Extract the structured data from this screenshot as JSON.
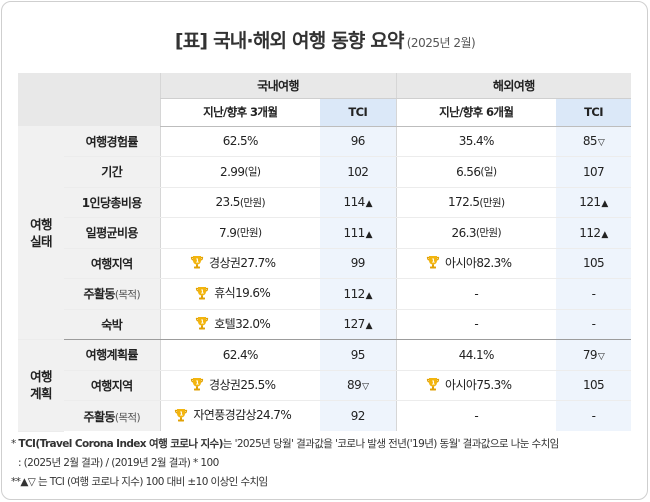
{
  "title": "[표] 국내·해외 여행 동향 요약",
  "subtitle": "(2025년 2월)",
  "header": {
    "domestic": "국내여행",
    "overseas": "해외여행",
    "period": "지난/향후 3개월",
    "period_overseas": "지난/향후 6개월",
    "tci": "TCI"
  },
  "categories": {
    "actual": [
      "여행",
      "실태"
    ],
    "plan": [
      "여행",
      "계획"
    ]
  },
  "rows": {
    "r0": {
      "label": "여행경험률",
      "label_sub": "",
      "d_val": "62.5%",
      "d_unit": "",
      "d_trophy": false,
      "d_tci": "96",
      "d_arrow": "",
      "o_val": "35.4%",
      "o_unit": "",
      "o_trophy": false,
      "o_tci": "85",
      "o_arrow": "▽"
    },
    "r1": {
      "label": "기간",
      "label_sub": "",
      "d_val": "2.99",
      "d_unit": "(일)",
      "d_trophy": false,
      "d_tci": "102",
      "d_arrow": "",
      "o_val": "6.56",
      "o_unit": "(일)",
      "o_trophy": false,
      "o_tci": "107",
      "o_arrow": ""
    },
    "r2": {
      "label": "1인당총비용",
      "label_sub": "",
      "d_val": "23.5",
      "d_unit": "(만원)",
      "d_trophy": false,
      "d_tci": "114",
      "d_arrow": "▲",
      "o_val": "172.5",
      "o_unit": "(만원)",
      "o_trophy": false,
      "o_tci": "121",
      "o_arrow": "▲"
    },
    "r3": {
      "label": "일평균비용",
      "label_sub": "",
      "d_val": "7.9",
      "d_unit": "(만원)",
      "d_trophy": false,
      "d_tci": "111",
      "d_arrow": "▲",
      "o_val": "26.3",
      "o_unit": "(만원)",
      "o_trophy": false,
      "o_tci": "112",
      "o_arrow": "▲"
    },
    "r4": {
      "label": "여행지역",
      "label_sub": "",
      "d_val": "경상권27.7%",
      "d_unit": "",
      "d_trophy": true,
      "d_tci": "99",
      "d_arrow": "",
      "o_val": "아시아82.3%",
      "o_unit": "",
      "o_trophy": true,
      "o_tci": "105",
      "o_arrow": ""
    },
    "r5": {
      "label": "주활동",
      "label_sub": "(목적)",
      "d_val": "휴식19.6%",
      "d_unit": "",
      "d_trophy": true,
      "d_tci": "112",
      "d_arrow": "▲",
      "o_val": "-",
      "o_unit": "",
      "o_trophy": false,
      "o_tci": "-",
      "o_arrow": ""
    },
    "r6": {
      "label": "숙박",
      "label_sub": "",
      "d_val": "호텔32.0%",
      "d_unit": "",
      "d_trophy": true,
      "d_tci": "127",
      "d_arrow": "▲",
      "o_val": "-",
      "o_unit": "",
      "o_trophy": false,
      "o_tci": "-",
      "o_arrow": ""
    },
    "r7": {
      "label": "여행계획률",
      "label_sub": "",
      "d_val": "62.4%",
      "d_unit": "",
      "d_trophy": false,
      "d_tci": "95",
      "d_arrow": "",
      "o_val": "44.1%",
      "o_unit": "",
      "o_trophy": false,
      "o_tci": "79",
      "o_arrow": "▽"
    },
    "r8": {
      "label": "여행지역",
      "label_sub": "",
      "d_val": "경상권25.5%",
      "d_unit": "",
      "d_trophy": true,
      "d_tci": "89",
      "d_arrow": "▽",
      "o_val": "아시아75.3%",
      "o_unit": "",
      "o_trophy": true,
      "o_tci": "105",
      "o_arrow": ""
    },
    "r9": {
      "label": "주활동",
      "label_sub": "(목적)",
      "d_val": "자연풍경감상24.7%",
      "d_unit": "",
      "d_trophy": true,
      "d_tci": "92",
      "d_arrow": "",
      "o_val": "-",
      "o_unit": "",
      "o_trophy": false,
      "o_tci": "-",
      "o_arrow": ""
    }
  },
  "footnotes": {
    "note1_pre": "* ",
    "note1_bold": "TCI(Travel Corona Index 여행 코로나 지수)",
    "note1_rest": "는 '2025년 당월' 결과값을 '코로나 발생 전년('19년) 동월' 결과값으로 나눈 수치임",
    "note2": ": (2025년 2월 결과) / (2019년 2월 결과) * 100",
    "note3_pre": "**",
    "note3_bold": "▲▽",
    "note3_rest": " 는 TCI (여행 코로나 지수) 100 대비  ±10 이상인 수치임"
  },
  "colors": {
    "tci_header_bg": "#dbe8f8",
    "tci_cell_bg": "#eef4fc",
    "label_bg": "#f1f1f1",
    "trophy": "#f3b50e"
  }
}
